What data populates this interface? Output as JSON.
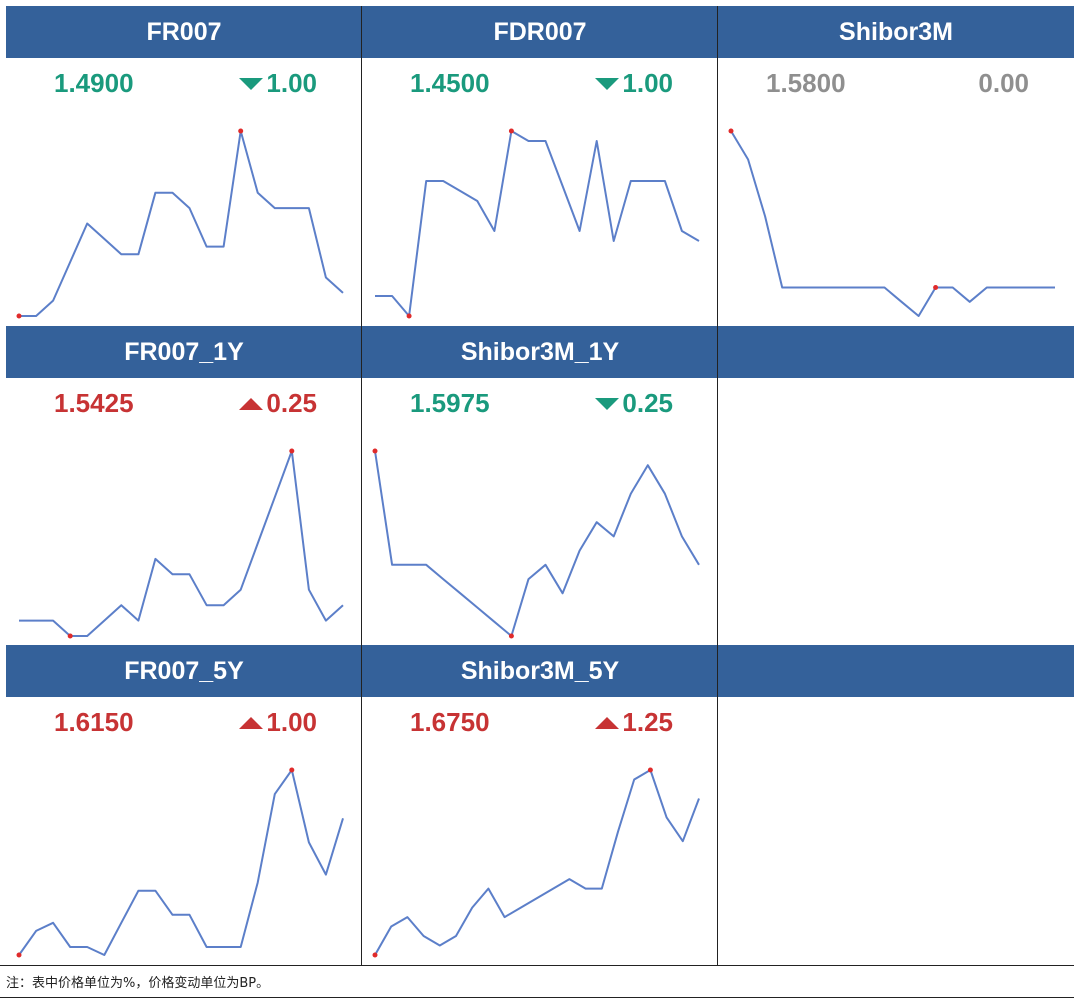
{
  "colors": {
    "header": "#34619a",
    "down": "#1a9a7d",
    "up": "#c73334",
    "flat": "#8f8f8f",
    "line": "#5c7fc9",
    "marker": "#e02b2b"
  },
  "note": "注：表中价格单位为%，价格变动单位为BP。",
  "chart_data": [
    {
      "type": "line",
      "title": "FR007",
      "price": "1.4900",
      "change": "1.00",
      "direction": "down",
      "values": [
        1.463,
        1.463,
        1.465,
        1.47,
        1.475,
        1.473,
        1.471,
        1.471,
        1.479,
        1.479,
        1.477,
        1.472,
        1.472,
        1.487,
        1.479,
        1.477,
        1.477,
        1.477,
        1.468,
        1.466
      ],
      "markers": [
        0,
        13
      ]
    },
    {
      "type": "line",
      "title": "FDR007",
      "price": "1.4500",
      "change": "1.00",
      "direction": "down",
      "values": [
        1.423,
        1.423,
        1.419,
        1.446,
        1.446,
        1.444,
        1.442,
        1.436,
        1.456,
        1.454,
        1.454,
        1.445,
        1.436,
        1.454,
        1.434,
        1.446,
        1.446,
        1.446,
        1.436,
        1.434
      ],
      "markers": [
        2,
        8
      ]
    },
    {
      "type": "line",
      "title": "Shibor3M",
      "price": "1.5800",
      "change": "0.00",
      "direction": "flat",
      "values": [
        1.597,
        1.595,
        1.591,
        1.586,
        1.586,
        1.586,
        1.586,
        1.586,
        1.586,
        1.586,
        1.585,
        1.584,
        1.586,
        1.586,
        1.585,
        1.586,
        1.586,
        1.586,
        1.586,
        1.586
      ],
      "markers": [
        0,
        12
      ]
    },
    {
      "type": "line",
      "title": "FR007_1Y",
      "price": "1.5425",
      "change": "0.25",
      "direction": "up",
      "values": [
        1.538,
        1.538,
        1.538,
        1.537,
        1.537,
        1.538,
        1.539,
        1.538,
        1.542,
        1.541,
        1.541,
        1.539,
        1.539,
        1.54,
        1.543,
        1.546,
        1.549,
        1.54,
        1.538,
        1.539
      ],
      "markers": [
        3,
        16
      ]
    },
    {
      "type": "line",
      "title": "Shibor3M_1Y",
      "price": "1.5975",
      "change": "0.25",
      "direction": "down",
      "values": [
        1.612,
        1.604,
        1.604,
        1.604,
        1.603,
        1.602,
        1.601,
        1.6,
        1.599,
        1.603,
        1.604,
        1.602,
        1.605,
        1.607,
        1.606,
        1.609,
        1.611,
        1.609,
        1.606,
        1.604
      ],
      "markers": [
        0,
        8
      ]
    },
    {
      "type": "line",
      "title": "FR007_5Y",
      "price": "1.6150",
      "change": "1.00",
      "direction": "up",
      "values": [
        1.602,
        1.605,
        1.606,
        1.603,
        1.603,
        1.602,
        1.606,
        1.61,
        1.61,
        1.607,
        1.607,
        1.603,
        1.603,
        1.603,
        1.611,
        1.622,
        1.625,
        1.616,
        1.612,
        1.619
      ],
      "markers": [
        0,
        16
      ]
    },
    {
      "type": "line",
      "title": "Shibor3M_5Y",
      "price": "1.6750",
      "change": "1.25",
      "direction": "up",
      "values": [
        1.651,
        1.657,
        1.659,
        1.655,
        1.653,
        1.655,
        1.661,
        1.665,
        1.659,
        1.661,
        1.663,
        1.665,
        1.667,
        1.665,
        1.665,
        1.677,
        1.688,
        1.69,
        1.68,
        1.675,
        1.684
      ],
      "markers": [
        0,
        17
      ]
    }
  ]
}
